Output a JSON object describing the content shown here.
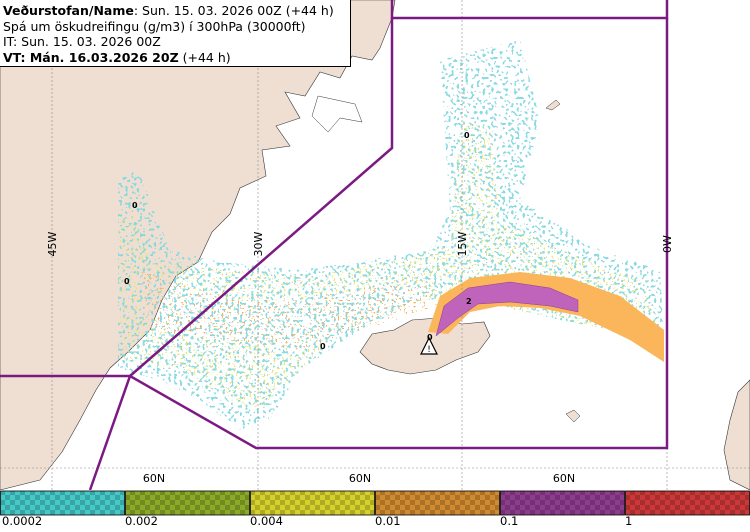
{
  "header": {
    "line1_bold": "Veðurstofan/Name",
    "line1_rest": ": Sun. 15. 03. 2026 00Z (+44 h)",
    "line2": "Spá um öskudreifingu (g/m3) í 300hPa (30000ft)",
    "line3": "IT: Sun. 15. 03. 2026 00Z",
    "line4_bold": "VT: Mán. 16.03.2026 20Z",
    "line4_rest": " (+44 h)"
  },
  "map": {
    "meridian_labels": [
      "45W",
      "30W",
      "15W",
      "0W"
    ],
    "parallel_labels": [
      "60N",
      "60N",
      "60N"
    ],
    "contour_labels": [
      "0",
      "0",
      "0",
      "0",
      "2",
      "0"
    ],
    "colors": {
      "land": "#efdfd3",
      "sea": "#ffffff",
      "zone_line": "#7b1a82",
      "grid": "#8a8a8a"
    },
    "volcano_icon": "warning-triangle-icon"
  },
  "legend": {
    "thresholds": [
      "0.0002",
      "0.002",
      "0.004",
      "0.01",
      "0.1",
      "1"
    ],
    "colors": [
      "#44c8c8",
      "#8aaa28",
      "#d6d02c",
      "#d08a30",
      "#8e3c8e",
      "#cc3838"
    ]
  }
}
